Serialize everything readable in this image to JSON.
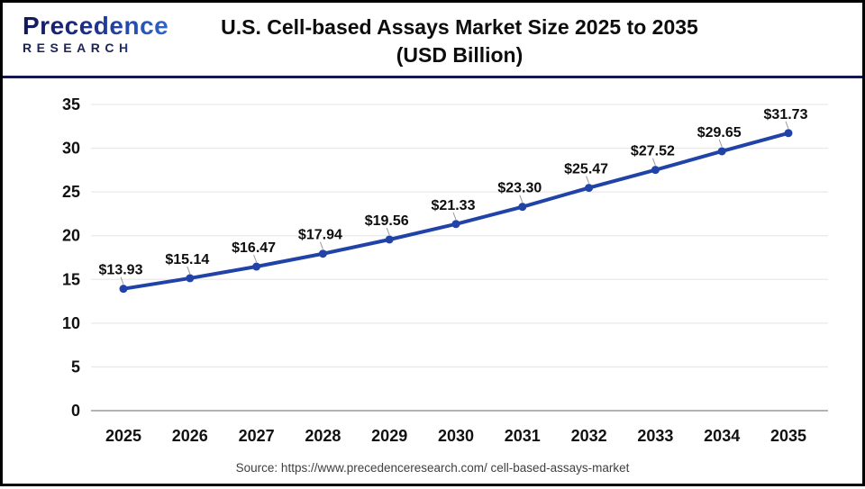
{
  "logo": {
    "name": "Precedence",
    "subtitle": "RESEARCH"
  },
  "header": {
    "title": "U.S. Cell-based Assays Market Size 2025 to 2035",
    "subtitle": "(USD Billion)"
  },
  "footer": {
    "source": "Source: https://www.precedenceresearch.com/ cell-based-assays-market"
  },
  "chart_data": {
    "type": "line",
    "title": "U.S. Cell-based Assays Market Size 2025 to 2035 (USD Billion)",
    "categories": [
      "2025",
      "2026",
      "2027",
      "2028",
      "2029",
      "2030",
      "2031",
      "2032",
      "2033",
      "2034",
      "2035"
    ],
    "values": [
      13.93,
      15.14,
      16.47,
      17.94,
      19.56,
      21.33,
      23.3,
      25.47,
      27.52,
      29.65,
      31.73
    ],
    "value_prefix": "$",
    "axis": {
      "ymin": 0,
      "ymax": 35,
      "ystep": 5
    },
    "grid": "on",
    "legend": "none",
    "colors": {
      "line": "#2143a8",
      "marker": "#2143a8",
      "gridline": "#e9e9e9",
      "baseline": "#b3b3b3",
      "leader": "#999999"
    }
  }
}
